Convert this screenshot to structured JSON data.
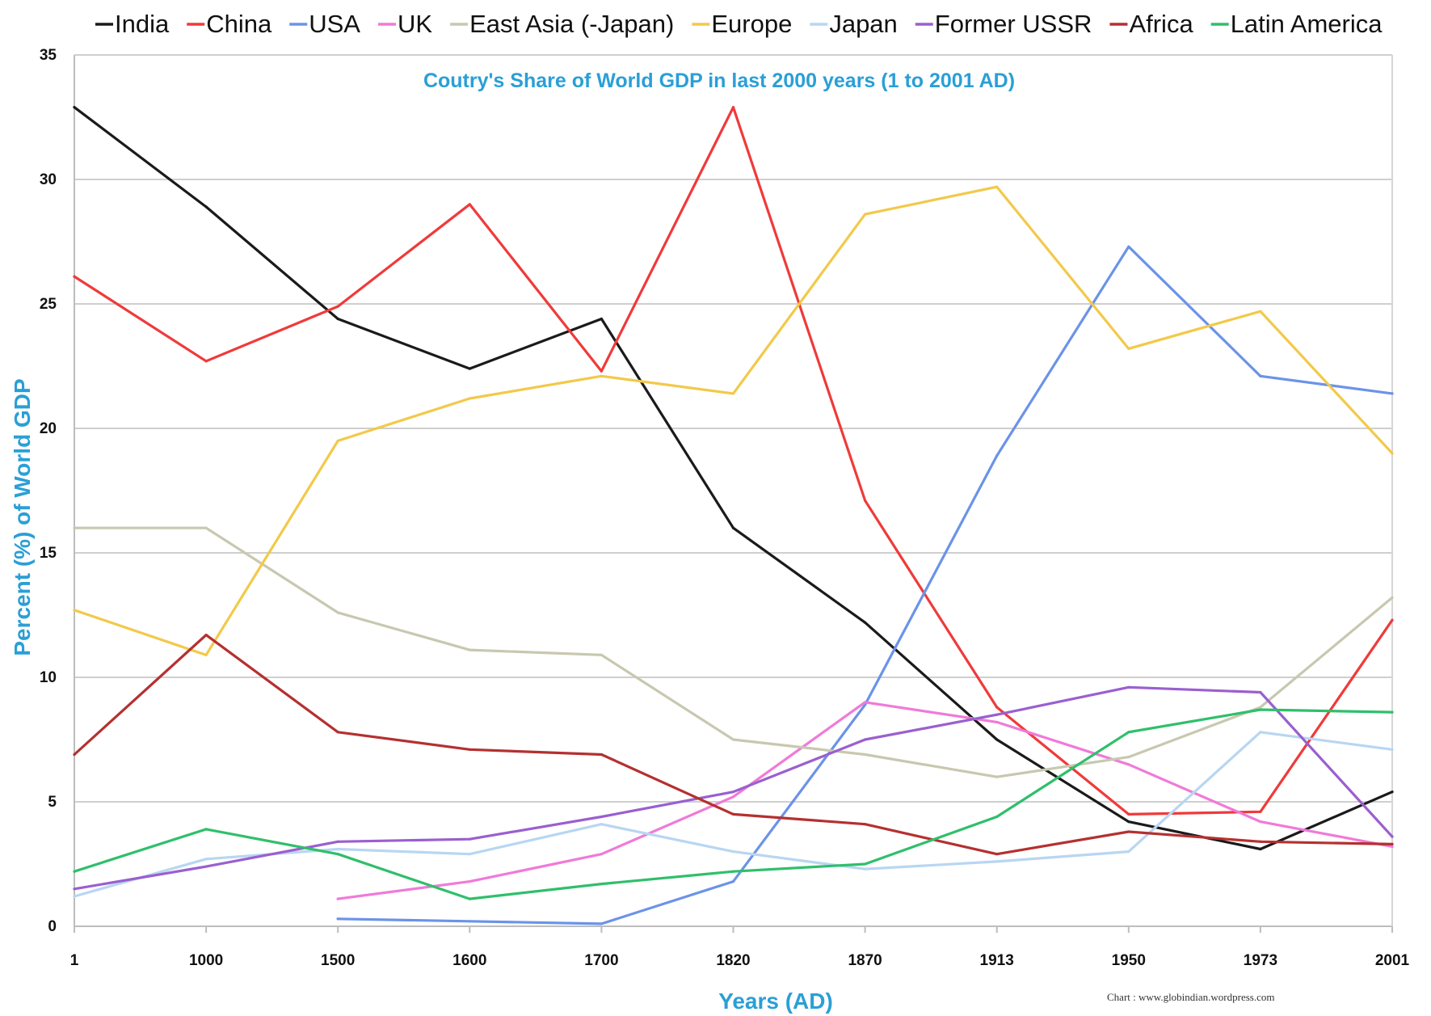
{
  "chart_data": {
    "type": "line",
    "title": "Coutry's Share of World GDP in last 2000 years (1 to 2001 AD)",
    "xlabel": "Years (AD)",
    "ylabel": "Percent (%)  of  World GDP",
    "credit": "Chart : www.globindian.wordpress.com",
    "categories": [
      "1",
      "1000",
      "1500",
      "1600",
      "1700",
      "1820",
      "1870",
      "1913",
      "1950",
      "1973",
      "2001"
    ],
    "ylim": [
      0,
      35
    ],
    "yticks": [
      0,
      5,
      10,
      15,
      20,
      25,
      30,
      35
    ],
    "grid": true,
    "legend_position": "top",
    "series": [
      {
        "name": "India",
        "color": "#1a1a1a",
        "values": [
          32.9,
          28.9,
          24.4,
          22.4,
          24.4,
          16.0,
          12.2,
          7.5,
          4.2,
          3.1,
          5.4
        ]
      },
      {
        "name": "China",
        "color": "#f03a3a",
        "values": [
          26.1,
          22.7,
          24.9,
          29.0,
          22.3,
          32.9,
          17.1,
          8.8,
          4.5,
          4.6,
          12.3
        ]
      },
      {
        "name": "USA",
        "color": "#6b93e8",
        "values": [
          null,
          null,
          0.3,
          0.2,
          0.1,
          1.8,
          8.9,
          18.9,
          27.3,
          22.1,
          21.4
        ]
      },
      {
        "name": "UK",
        "color": "#f07ad8",
        "values": [
          null,
          null,
          1.1,
          1.8,
          2.9,
          5.2,
          9.0,
          8.2,
          6.5,
          4.2,
          3.2
        ]
      },
      {
        "name": "East Asia (-Japan)",
        "color": "#c8c8b0",
        "values": [
          16.0,
          16.0,
          12.6,
          11.1,
          10.9,
          7.5,
          6.9,
          6.0,
          6.8,
          8.8,
          13.2
        ]
      },
      {
        "name": "Europe",
        "color": "#f2c94a",
        "values": [
          12.7,
          10.9,
          19.5,
          21.2,
          22.1,
          21.4,
          28.6,
          29.7,
          23.2,
          24.7,
          19.0
        ]
      },
      {
        "name": "Japan",
        "color": "#b8d6f2",
        "values": [
          1.2,
          2.7,
          3.1,
          2.9,
          4.1,
          3.0,
          2.3,
          2.6,
          3.0,
          7.8,
          7.1
        ]
      },
      {
        "name": "Former USSR",
        "color": "#9a5fd0",
        "values": [
          1.5,
          2.4,
          3.4,
          3.5,
          4.4,
          5.4,
          7.5,
          8.5,
          9.6,
          9.4,
          3.6
        ]
      },
      {
        "name": "Africa",
        "color": "#b53030",
        "values": [
          6.9,
          11.7,
          7.8,
          7.1,
          6.9,
          4.5,
          4.1,
          2.9,
          3.8,
          3.4,
          3.3
        ]
      },
      {
        "name": "Latin America",
        "color": "#2fbf6b",
        "values": [
          2.2,
          3.9,
          2.9,
          1.1,
          1.7,
          2.2,
          2.5,
          4.4,
          7.8,
          8.7,
          8.6
        ]
      }
    ]
  }
}
